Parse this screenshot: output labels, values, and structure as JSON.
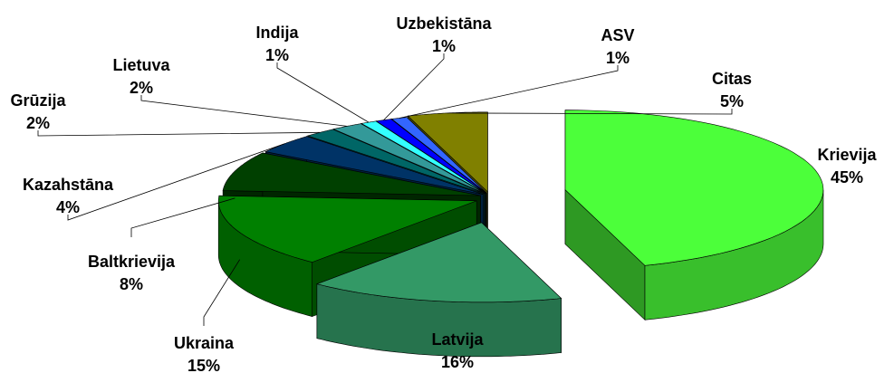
{
  "chart_data": {
    "type": "pie",
    "categories": [
      "Krievija",
      "Latvija",
      "Ukraina",
      "Baltkrievija",
      "Kazahstāna",
      "Grūzija",
      "Lietuva",
      "Indija",
      "Uzbekistāna",
      "ASV",
      "Citas"
    ],
    "values": [
      45,
      16,
      15,
      8,
      4,
      2,
      2,
      1,
      1,
      1,
      5
    ],
    "value_labels": [
      "45%",
      "16%",
      "15%",
      "8%",
      "4%",
      "2%",
      "2%",
      "1%",
      "1%",
      "1%",
      "5%"
    ],
    "colors": [
      "#4cff3a",
      "#339966",
      "#008000",
      "#004000",
      "#003366",
      "#006666",
      "#339999",
      "#33ffff",
      "#0000ff",
      "#3366ff",
      "#808000"
    ]
  }
}
